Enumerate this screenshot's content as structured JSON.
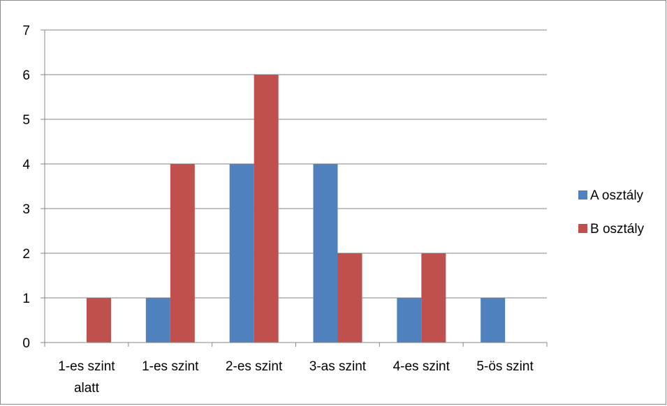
{
  "chart_data": {
    "type": "bar",
    "categories": [
      [
        "1-es szint",
        "alatt"
      ],
      [
        "1-es szint"
      ],
      [
        "2-es szint"
      ],
      [
        "3-as szint"
      ],
      [
        "4-es szint"
      ],
      [
        "5-ös szint"
      ]
    ],
    "series": [
      {
        "name": "A osztály",
        "values": [
          0,
          1,
          4,
          4,
          1,
          1
        ],
        "color": "#4F81BD"
      },
      {
        "name": "B osztály",
        "values": [
          1,
          4,
          6,
          2,
          2,
          0
        ],
        "color": "#C0504D"
      }
    ],
    "ylim": [
      0,
      7
    ],
    "yticks": [
      0,
      1,
      2,
      3,
      4,
      5,
      6,
      7
    ],
    "grid": true,
    "legend_position": "right",
    "title": "",
    "xlabel": "",
    "ylabel": ""
  }
}
